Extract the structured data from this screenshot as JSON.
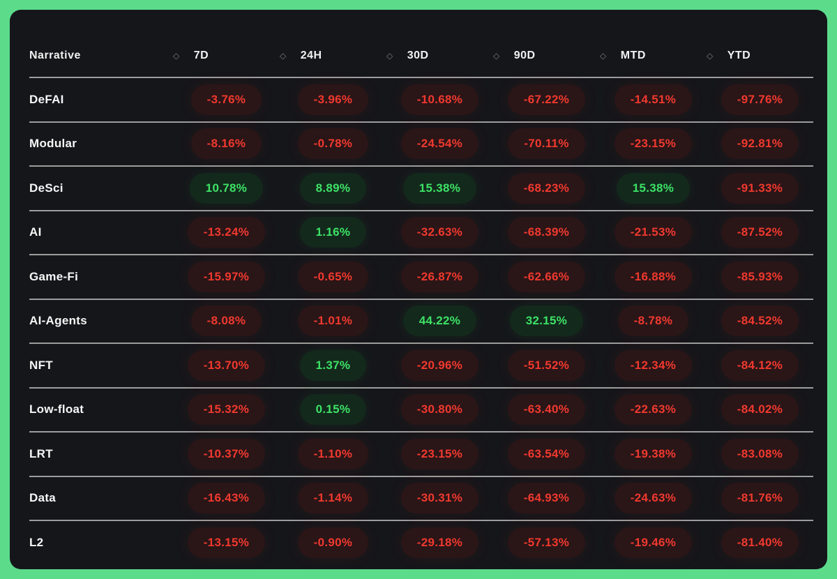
{
  "colors": {
    "frame_border": "#5cdc8b",
    "panel_bg": "#15161a",
    "separator": "#9d9d9d",
    "header_text": "#f2f2f2",
    "negative_text": "#f0392e",
    "negative_pill_bg": "#2a1517",
    "positive_text": "#3de266",
    "positive_pill_bg": "#13291c"
  },
  "icons": {
    "sort": "◇"
  },
  "table": {
    "columns": [
      {
        "key": "narrative",
        "label": "Narrative",
        "sortable": false
      },
      {
        "key": "7d",
        "label": "7D",
        "sortable": true
      },
      {
        "key": "24h",
        "label": "24H",
        "sortable": true
      },
      {
        "key": "30d",
        "label": "30D",
        "sortable": true
      },
      {
        "key": "90d",
        "label": "90D",
        "sortable": true
      },
      {
        "key": "mtd",
        "label": "MTD",
        "sortable": true
      },
      {
        "key": "ytd",
        "label": "YTD",
        "sortable": true
      }
    ],
    "rows": [
      {
        "narrative": "DeFAI",
        "values": [
          "-3.76%",
          "-3.96%",
          "-10.68%",
          "-67.22%",
          "-14.51%",
          "-97.76%"
        ]
      },
      {
        "narrative": "Modular",
        "values": [
          "-8.16%",
          "-0.78%",
          "-24.54%",
          "-70.11%",
          "-23.15%",
          "-92.81%"
        ]
      },
      {
        "narrative": "DeSci",
        "values": [
          "10.78%",
          "8.89%",
          "15.38%",
          "-68.23%",
          "15.38%",
          "-91.33%"
        ]
      },
      {
        "narrative": "AI",
        "values": [
          "-13.24%",
          "1.16%",
          "-32.63%",
          "-68.39%",
          "-21.53%",
          "-87.52%"
        ]
      },
      {
        "narrative": "Game-Fi",
        "values": [
          "-15.97%",
          "-0.65%",
          "-26.87%",
          "-62.66%",
          "-16.88%",
          "-85.93%"
        ]
      },
      {
        "narrative": "AI-Agents",
        "values": [
          "-8.08%",
          "-1.01%",
          "44.22%",
          "32.15%",
          "-8.78%",
          "-84.52%"
        ]
      },
      {
        "narrative": "NFT",
        "values": [
          "-13.70%",
          "1.37%",
          "-20.96%",
          "-51.52%",
          "-12.34%",
          "-84.12%"
        ]
      },
      {
        "narrative": "Low-float",
        "values": [
          "-15.32%",
          "0.15%",
          "-30.80%",
          "-63.40%",
          "-22.63%",
          "-84.02%"
        ]
      },
      {
        "narrative": "LRT",
        "values": [
          "-10.37%",
          "-1.10%",
          "-23.15%",
          "-63.54%",
          "-19.38%",
          "-83.08%"
        ]
      },
      {
        "narrative": "Data",
        "values": [
          "-16.43%",
          "-1.14%",
          "-30.31%",
          "-64.93%",
          "-24.63%",
          "-81.76%"
        ]
      },
      {
        "narrative": "L2",
        "values": [
          "-13.15%",
          "-0.90%",
          "-29.18%",
          "-57.13%",
          "-19.46%",
          "-81.40%"
        ]
      }
    ]
  }
}
